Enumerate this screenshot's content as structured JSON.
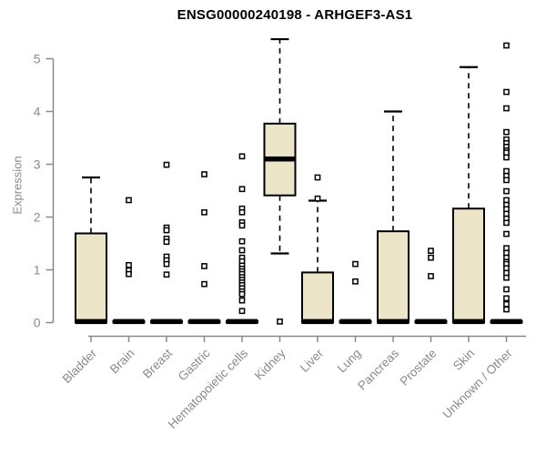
{
  "chart": {
    "title": "ENSG00000240198 - ARHGEF3-AS1",
    "y_axis_title": "Expression"
  },
  "chart_data": {
    "type": "boxplot",
    "title": "ENSG00000240198 - ARHGEF3-AS1",
    "xlabel": "",
    "ylabel": "Expression",
    "ylim": [
      0,
      5
    ],
    "yticks": [
      0,
      1,
      2,
      3,
      4,
      5
    ],
    "grid": false,
    "legend": false,
    "box_fill_color": "#ECE5C8",
    "box_border_color": "#000000",
    "axis_color": "#8a8a8a",
    "label_color": "#8a8a8a",
    "categories": [
      "Bladder",
      "Brain",
      "Breast",
      "Gastric",
      "Hematopoietic cells",
      "Kidney",
      "Liver",
      "Lung",
      "Pancreas",
      "Prostate",
      "Skin",
      "Unknown / Other"
    ],
    "series": [
      {
        "name": "Bladder",
        "q1": 0,
        "median": 0.02,
        "q3": 1.69,
        "whisker_low": 0,
        "whisker_high": 2.75,
        "outliers": []
      },
      {
        "name": "Brain",
        "q1": 0,
        "median": 0.02,
        "q3": 0.03,
        "whisker_low": 0,
        "whisker_high": 0.03,
        "outliers": [
          2.32,
          1.09,
          0.99,
          0.92
        ]
      },
      {
        "name": "Breast",
        "q1": 0,
        "median": 0.02,
        "q3": 0.03,
        "whisker_low": 0,
        "whisker_high": 0.03,
        "outliers": [
          2.99,
          1.8,
          1.75,
          1.59,
          1.53,
          1.25,
          1.18,
          1.11,
          0.91
        ]
      },
      {
        "name": "Gastric",
        "q1": 0,
        "median": 0.02,
        "q3": 0.03,
        "whisker_low": 0,
        "whisker_high": 0.03,
        "outliers": [
          2.81,
          2.09,
          1.07,
          0.73
        ]
      },
      {
        "name": "Hematopoietic cells",
        "q1": 0,
        "median": 0.02,
        "q3": 0.03,
        "whisker_low": 0,
        "whisker_high": 0.03,
        "outliers": [
          3.15,
          2.53,
          2.16,
          2.09,
          1.9,
          1.84,
          1.54,
          1.37,
          1.23,
          1.16,
          1.08,
          1.02,
          0.97,
          0.92,
          0.86,
          0.81,
          0.76,
          0.71,
          0.65,
          0.59,
          0.54,
          0.42,
          0.22
        ]
      },
      {
        "name": "Kidney",
        "q1": 2.41,
        "median": 3.1,
        "q3": 3.77,
        "whisker_low": 1.31,
        "whisker_high": 5.37,
        "outliers": [
          0.02
        ]
      },
      {
        "name": "Liver",
        "q1": 0,
        "median": 0.02,
        "q3": 0.95,
        "whisker_low": 0,
        "whisker_high": 2.31,
        "outliers": [
          2.75,
          2.35
        ]
      },
      {
        "name": "Lung",
        "q1": 0,
        "median": 0.02,
        "q3": 0.03,
        "whisker_low": 0,
        "whisker_high": 0.03,
        "outliers": [
          1.11,
          0.78
        ]
      },
      {
        "name": "Pancreas",
        "q1": 0,
        "median": 0.02,
        "q3": 1.73,
        "whisker_low": 0,
        "whisker_high": 4.0,
        "outliers": []
      },
      {
        "name": "Prostate",
        "q1": 0,
        "median": 0.02,
        "q3": 0.03,
        "whisker_low": 0,
        "whisker_high": 0.03,
        "outliers": [
          1.36,
          1.23,
          0.88
        ]
      },
      {
        "name": "Skin",
        "q1": 0,
        "median": 0.02,
        "q3": 2.16,
        "whisker_low": 0,
        "whisker_high": 4.84,
        "outliers": []
      },
      {
        "name": "Unknown / Other",
        "q1": 0,
        "median": 0.02,
        "q3": 0.03,
        "whisker_low": 0,
        "whisker_high": 0.03,
        "outliers": [
          5.25,
          4.37,
          4.06,
          3.61,
          3.47,
          3.4,
          3.33,
          3.26,
          3.22,
          3.13,
          2.87,
          2.78,
          2.7,
          2.49,
          2.32,
          2.23,
          2.15,
          2.06,
          1.97,
          1.89,
          1.68,
          1.41,
          1.32,
          1.23,
          1.15,
          1.11,
          1.03,
          0.94,
          0.85,
          0.63,
          0.46,
          0.35,
          0.25
        ]
      }
    ]
  }
}
